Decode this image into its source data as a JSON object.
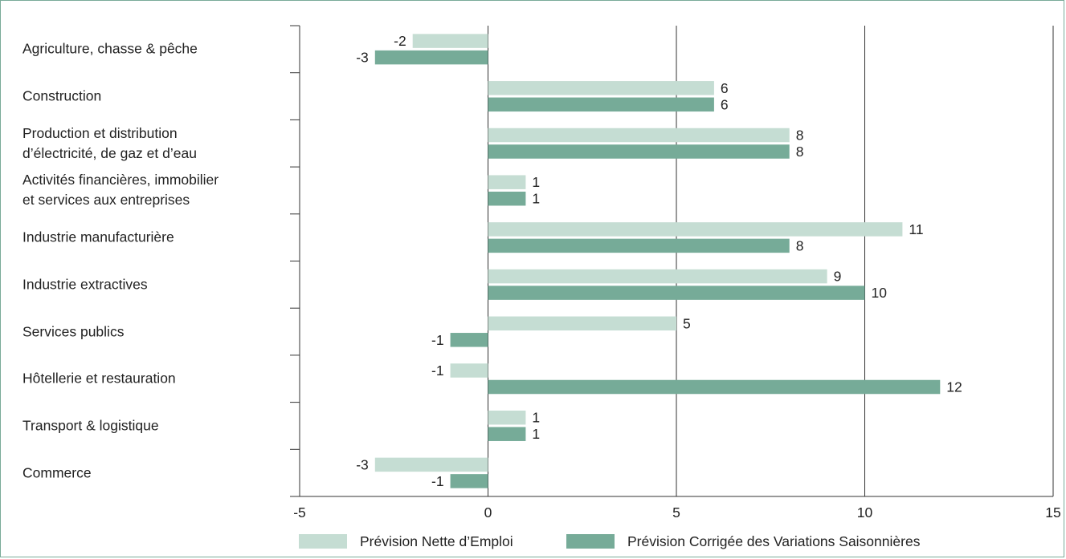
{
  "chart_data": {
    "type": "bar",
    "orientation": "horizontal",
    "categories": [
      "Agriculture, chasse & pêche",
      "Construction",
      "Production et distribution\nd’électricité, de gaz et d’eau",
      "Activités financières, immobilier\net services aux entreprises",
      "Industrie manufacturière",
      "Industrie extractives",
      "Services publics",
      "Hôtellerie et restauration",
      "Transport & logistique",
      "Commerce"
    ],
    "series": [
      {
        "name": "Prévision Nette d’Emploi",
        "color": "#c5ddd3",
        "values": [
          -2,
          6,
          8,
          1,
          11,
          9,
          5,
          -1,
          1,
          -3
        ]
      },
      {
        "name": "Prévision Corrigée des Variations Saisonnières",
        "color": "#76ab98",
        "values": [
          -3,
          6,
          8,
          1,
          8,
          10,
          -1,
          12,
          1,
          -1
        ]
      }
    ],
    "xlim": [
      -5,
      15
    ],
    "xticks": [
      -5,
      0,
      5,
      10,
      15
    ],
    "grid": true,
    "legend_position": "bottom"
  }
}
